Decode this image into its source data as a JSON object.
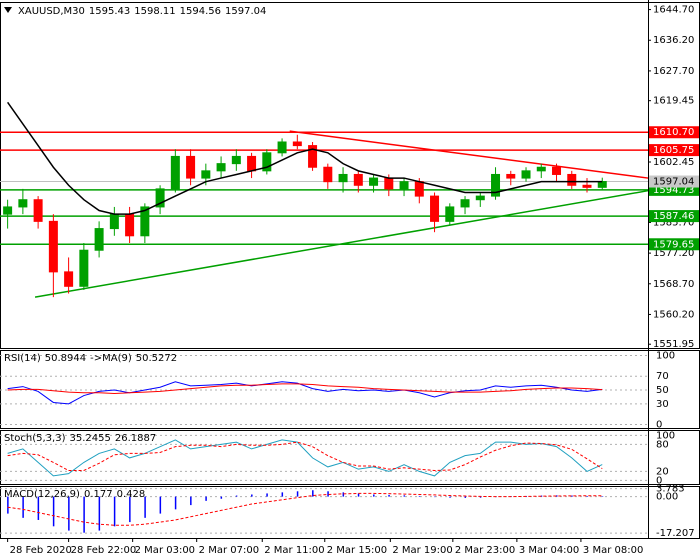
{
  "chart_data": [
    {
      "type": "candlestick",
      "symbol": "XAUUSD,M30",
      "candles": [
        [
          1588,
          1592,
          1584,
          1590
        ],
        [
          1590,
          1595,
          1588,
          1592
        ],
        [
          1592,
          1593,
          1584,
          1586
        ],
        [
          1586,
          1588,
          1565,
          1572
        ],
        [
          1572,
          1576,
          1566,
          1568
        ],
        [
          1568,
          1580,
          1567,
          1578
        ],
        [
          1578,
          1586,
          1576,
          1584
        ],
        [
          1584,
          1590,
          1582,
          1588
        ],
        [
          1588,
          1590,
          1580,
          1582
        ],
        [
          1582,
          1591,
          1580,
          1590
        ],
        [
          1590,
          1596,
          1588,
          1595
        ],
        [
          1595,
          1606,
          1594,
          1604
        ],
        [
          1604,
          1606,
          1596,
          1598
        ],
        [
          1598,
          1602,
          1596,
          1600
        ],
        [
          1600,
          1604,
          1598,
          1602
        ],
        [
          1602,
          1606,
          1600,
          1604
        ],
        [
          1604,
          1605,
          1598,
          1600
        ],
        [
          1600,
          1606,
          1599,
          1605
        ],
        [
          1605,
          1609,
          1604,
          1608
        ],
        [
          1608,
          1610,
          1606,
          1607
        ],
        [
          1607,
          1608,
          1600,
          1601
        ],
        [
          1601,
          1602,
          1595,
          1597
        ],
        [
          1597,
          1601,
          1594,
          1599
        ],
        [
          1599,
          1600,
          1594,
          1596
        ],
        [
          1596,
          1599,
          1594,
          1598
        ],
        [
          1598,
          1599,
          1593,
          1595
        ],
        [
          1595,
          1598,
          1593,
          1597
        ],
        [
          1597,
          1598,
          1591,
          1593
        ],
        [
          1593,
          1594,
          1583,
          1586
        ],
        [
          1586,
          1591,
          1585,
          1590
        ],
        [
          1590,
          1593,
          1588,
          1592
        ],
        [
          1592,
          1594,
          1590,
          1593
        ],
        [
          1593,
          1601,
          1592,
          1599
        ],
        [
          1599,
          1600,
          1596,
          1598
        ],
        [
          1598,
          1601,
          1597,
          1600
        ],
        [
          1600,
          1602,
          1598,
          1601
        ],
        [
          1601,
          1602,
          1597,
          1599
        ],
        [
          1599,
          1600,
          1595,
          1596
        ],
        [
          1596,
          1598,
          1594,
          1595.43
        ],
        [
          1595.43,
          1598.11,
          1594.56,
          1597.04
        ]
      ],
      "bull_color": "#00a000",
      "bear_color": "#ff0000",
      "ma": {
        "color": "#000000",
        "values": [
          1619,
          1613,
          1607,
          1601,
          1596,
          1592,
          1589,
          1588,
          1588,
          1589,
          1591,
          1593,
          1595,
          1597,
          1598,
          1599,
          1600,
          1601,
          1603,
          1605,
          1606,
          1605,
          1602,
          1600,
          1599,
          1598,
          1598,
          1597,
          1596,
          1595,
          1594,
          1594,
          1594,
          1595,
          1596,
          1597,
          1597,
          1597,
          1597,
          1597
        ]
      },
      "xlim": [
        -0.5,
        42
      ],
      "xticks": [
        {
          "value": 0,
          "label": "28 Feb 2020"
        },
        {
          "value": 4,
          "label": "28 Feb 22:00"
        },
        {
          "value": 8.2,
          "label": "2 Mar 03:00"
        },
        {
          "value": 12.4,
          "label": "2 Mar 07:00"
        },
        {
          "value": 16.7,
          "label": "2 Mar 11:00"
        },
        {
          "value": 20.8,
          "label": "2 Mar 15:00"
        },
        {
          "value": 25.1,
          "label": "2 Mar 19:00"
        },
        {
          "value": 29.2,
          "label": "2 Mar 23:00"
        },
        {
          "value": 33.4,
          "label": "3 Mar 04:00"
        },
        {
          "value": 37.6,
          "label": "3 Mar 08:00"
        }
      ],
      "ylim": [
        1550.9,
        1646.8
      ],
      "yticks": [
        {
          "value": 1644.7,
          "label": "1644.70"
        },
        {
          "value": 1636.2,
          "label": "1636.20"
        },
        {
          "value": 1627.7,
          "label": "1627.70"
        },
        1619.45,
        1602.45,
        {
          "value": 1585.7,
          "label": "1585.70"
        },
        {
          "value": 1577.2,
          "label": "1577.20"
        },
        {
          "value": 1568.7,
          "label": "1568.70"
        },
        {
          "value": 1560.2,
          "label": "1560.20"
        },
        1551.95
      ],
      "levels": [
        {
          "value": 1610.7,
          "label": "1610.70",
          "color": "#ff0000"
        },
        {
          "value": 1605.75,
          "color": "#ff0000"
        },
        {
          "value": 1594.73,
          "color": "#00a000"
        },
        {
          "value": 1587.46,
          "color": "#00a000"
        },
        {
          "value": 1579.65,
          "color": "#00a000"
        }
      ],
      "close_label_color": "#c8c8c8",
      "trendlines": [
        {
          "color": "#ff0000",
          "x": [
            18.5,
            42
          ],
          "y": [
            1611,
            1598
          ]
        },
        {
          "color": "#00a000",
          "x": [
            1.8,
            42
          ],
          "y": [
            1565,
            1594.5
          ]
        }
      ]
    },
    {
      "type": "line",
      "title": "RSI(14)",
      "ylim": [
        -5,
        108
      ],
      "yticks": [
        100,
        70,
        50,
        30,
        0
      ],
      "series": [
        {
          "color": "#0000ff",
          "values": [
            52,
            55,
            48,
            32,
            30,
            42,
            48,
            50,
            46,
            50,
            54,
            62,
            56,
            57,
            58,
            60,
            56,
            59,
            62,
            60,
            52,
            48,
            51,
            49,
            50,
            48,
            50,
            46,
            40,
            46,
            49,
            50,
            56,
            54,
            56,
            57,
            54,
            50,
            48,
            50.8944
          ]
        },
        {
          "name": "->MA(9)",
          "color": "#ff0000",
          "values": [
            50,
            51,
            51,
            49,
            47,
            46,
            46,
            45,
            46,
            47,
            48,
            50,
            52,
            54,
            56,
            57,
            57,
            58,
            59,
            59,
            58,
            56,
            55,
            54,
            52,
            51,
            50,
            49,
            48,
            47,
            47,
            47,
            48,
            49,
            51,
            52,
            53,
            53,
            52,
            50.5272
          ]
        }
      ]
    },
    {
      "type": "line",
      "title": "Stoch(5,3,3)",
      "ylim": [
        -8,
        112
      ],
      "yticks": [
        100,
        80,
        20,
        0
      ],
      "series": [
        {
          "color": "#20a0c0",
          "values": [
            60,
            70,
            40,
            10,
            15,
            40,
            60,
            70,
            50,
            60,
            75,
            90,
            70,
            75,
            80,
            85,
            70,
            80,
            90,
            85,
            50,
            30,
            40,
            25,
            30,
            20,
            35,
            20,
            10,
            40,
            55,
            60,
            85,
            85,
            80,
            82,
            75,
            50,
            20,
            35.2455
          ]
        },
        {
          "color": "#ff0000",
          "dashed": true,
          "values": [
            55,
            60,
            57,
            40,
            22,
            22,
            38,
            57,
            60,
            60,
            62,
            75,
            78,
            78,
            75,
            80,
            78,
            78,
            80,
            85,
            75,
            55,
            40,
            32,
            32,
            25,
            28,
            25,
            22,
            23,
            35,
            52,
            67,
            77,
            83,
            82,
            79,
            69,
            48,
            26.1887
          ]
        }
      ]
    },
    {
      "type": "macd",
      "title": "MACD(12,26,9)",
      "ylim": [
        -19.5,
        5
      ],
      "yticks": [
        3.783,
        {
          "value": 0,
          "label": "0.00"
        },
        -17.207
      ],
      "series": [
        {
          "color": "#0000ff",
          "histogram": true,
          "values": [
            -8,
            -10,
            -11,
            -14,
            -16,
            -17,
            -16,
            -14,
            -12,
            -10,
            -8,
            -6,
            -4,
            -2,
            -1,
            0.5,
            1,
            1.5,
            2,
            2.5,
            3,
            2.5,
            2,
            1.5,
            1,
            0.8,
            0.6,
            0.3,
            -0.2,
            -0.5,
            -0.6,
            -0.5,
            -0.2,
            0.1,
            0.3,
            0.5,
            0.6,
            0.5,
            0.3,
            0.177
          ]
        },
        {
          "color": "#ff0000",
          "dashed": true,
          "values": [
            -5,
            -6,
            -7.5,
            -9,
            -10.5,
            -12,
            -13,
            -13.5,
            -13.5,
            -13,
            -12,
            -11,
            -9.5,
            -8,
            -6.5,
            -5,
            -3.5,
            -2.5,
            -1.5,
            -0.5,
            0.5,
            1,
            1.3,
            1.5,
            1.5,
            1.4,
            1.2,
            1,
            0.8,
            0.5,
            0.3,
            0.1,
            0,
            0,
            0.1,
            0.2,
            0.3,
            0.35,
            0.4,
            0.428
          ]
        }
      ]
    }
  ]
}
